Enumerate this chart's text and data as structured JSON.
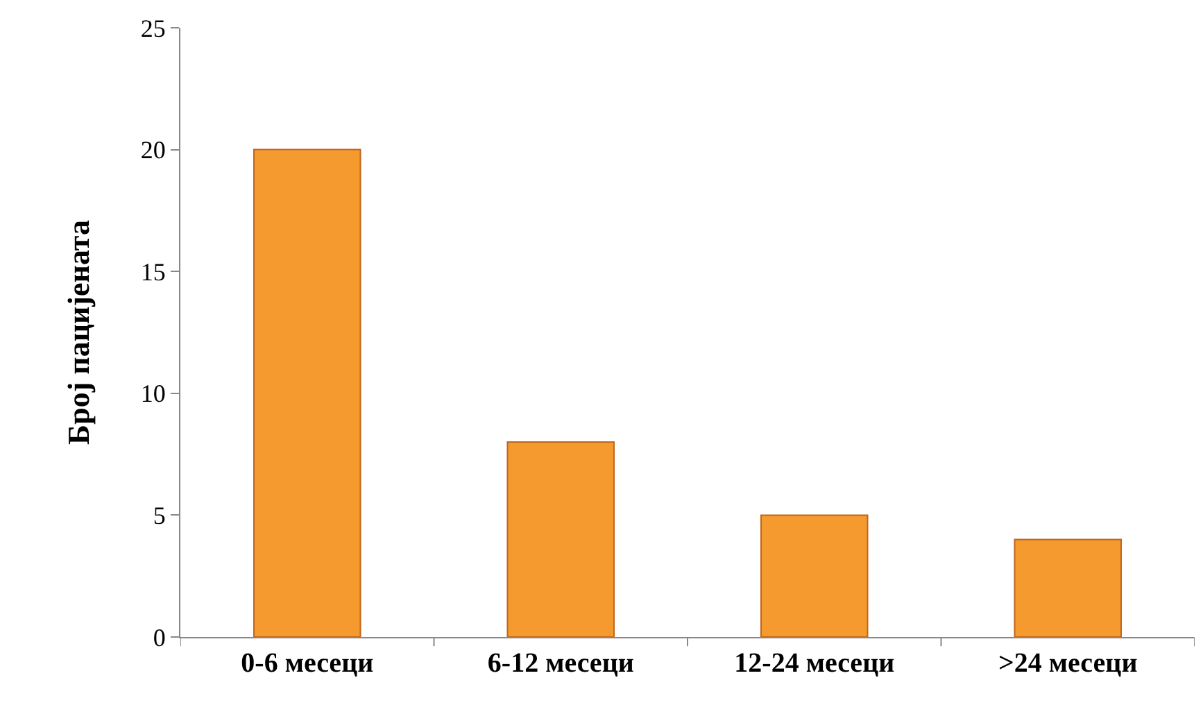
{
  "chart_data": {
    "type": "bar",
    "ylabel": "Број пацијената",
    "categories": [
      "0-6 месеци",
      "6-12 месеци",
      "12-24 месеци",
      ">24 месеци"
    ],
    "values": [
      20,
      8,
      5,
      4
    ],
    "color": "#f59a2e",
    "ylim": [
      0,
      25
    ],
    "yticks": [
      0,
      5,
      10,
      15,
      20,
      25
    ]
  }
}
